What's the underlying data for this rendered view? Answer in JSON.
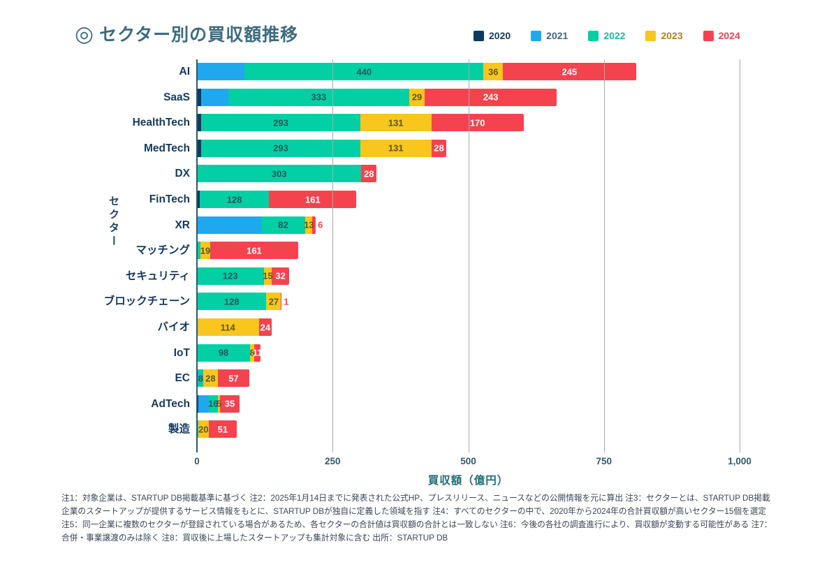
{
  "title": "セクター別の買収額推移",
  "title_icon": "◎",
  "legend": {
    "items": [
      {
        "label": "2020",
        "swatch": "#0e3a5e",
        "text_color": "#17395c"
      },
      {
        "label": "2021",
        "swatch": "#1fa8ee",
        "text_color": "#3e6880"
      },
      {
        "label": "2022",
        "swatch": "#02cfa4",
        "text_color": "#12bda0"
      },
      {
        "label": "2023",
        "swatch": "#f8c61d",
        "text_color": "#b5801f"
      },
      {
        "label": "2024",
        "swatch": "#f4434e",
        "text_color": "#ef4054"
      }
    ]
  },
  "chart_data": {
    "type": "bar",
    "stacked": true,
    "orientation": "horizontal",
    "title": "セクター別の買収額推移",
    "xlabel": "買収額（億円）",
    "ylabel": "セクター",
    "xlim": [
      0,
      1000
    ],
    "xticks": [
      0,
      250,
      500,
      750,
      1000
    ],
    "xtick_labels": [
      "0",
      "250",
      "500",
      "750",
      "1,000"
    ],
    "grid": true,
    "legend_position": "top-right",
    "categories": [
      "AI",
      "SaaS",
      "HealthTech",
      "MedTech",
      "DX",
      "FinTech",
      "XR",
      "マッチング",
      "セキュリティ",
      "ブロックチェーン",
      "バイオ",
      "IoT",
      "EC",
      "AdTech",
      "製造"
    ],
    "series": [
      {
        "name": "2020",
        "color": "#0e3a5e",
        "label_color": "#ffffff",
        "values": [
          0,
          8,
          8,
          8,
          0,
          5,
          0,
          0,
          0,
          0,
          0,
          0,
          0,
          2,
          0
        ],
        "labels": [
          "",
          "",
          "",
          "",
          "",
          "",
          "",
          "",
          "",
          "",
          "",
          "",
          "",
          "",
          ""
        ]
      },
      {
        "name": "2021",
        "color": "#1fa8ee",
        "label_color": "#2d5362",
        "values": [
          88,
          50,
          0,
          0,
          0,
          0,
          118,
          0,
          0,
          0,
          0,
          0,
          3,
          20,
          0
        ],
        "labels": [
          "",
          "",
          "",
          "",
          "",
          "",
          "",
          "",
          "",
          "",
          "",
          "",
          "",
          "",
          ""
        ]
      },
      {
        "name": "2022",
        "color": "#02cfa4",
        "label_color": "#2d5362",
        "values": [
          440,
          333,
          293,
          293,
          303,
          128,
          82,
          6,
          123,
          128,
          0,
          98,
          8,
          16,
          2
        ],
        "labels": [
          "440",
          "333",
          "293",
          "293",
          "303",
          "128",
          "82",
          "",
          "123",
          "128",
          "",
          "98",
          "8",
          "16",
          ""
        ]
      },
      {
        "name": "2023",
        "color": "#f8c61d",
        "label_color": "#5d5526",
        "values": [
          36,
          29,
          131,
          131,
          0,
          0,
          13,
          19,
          15,
          27,
          114,
          8,
          28,
          5,
          20
        ],
        "labels": [
          "36",
          "29",
          "131",
          "131",
          "",
          "",
          "13",
          "19",
          "15",
          "27",
          "114",
          "8",
          "28",
          "5",
          "20"
        ]
      },
      {
        "name": "2024",
        "color": "#f4434e",
        "label_color": "#ffffff",
        "outside_label_color": "#ef4455",
        "values": [
          245,
          243,
          170,
          28,
          28,
          161,
          6,
          161,
          32,
          1,
          24,
          11,
          57,
          35,
          51
        ],
        "labels": [
          "245",
          "243",
          "170",
          "28",
          "28",
          "161",
          "6",
          "161",
          "32",
          "1",
          "24",
          "11",
          "57",
          "35",
          "51"
        ]
      }
    ]
  },
  "footnote": "注1：対象企業は、STARTUP DB掲載基準に基づく 注2：2025年1月14日までに発表された公式HP、プレスリリース、ニュースなどの公開情報を元に算出 注3：セクターとは、STARTUP DB掲載企業のスタートアップが提供するサービス情報をもとに、STARTUP DBが独自に定義した領域を指す 注4：すべてのセクターの中で、2020年から2024年の合計買収額が高いセクター15個を選定 注5：同一企業に複数のセクターが登録されている場合があるため、各セクターの合計値は買収額の合計とは一致しない 注6：今後の各社の調査進行により、買収額が変動する可能性がある 注7：合併・事業譲渡のみは除く 注8：買収後に上場したスタートアップも集計対象に含む 出所：STARTUP DB"
}
